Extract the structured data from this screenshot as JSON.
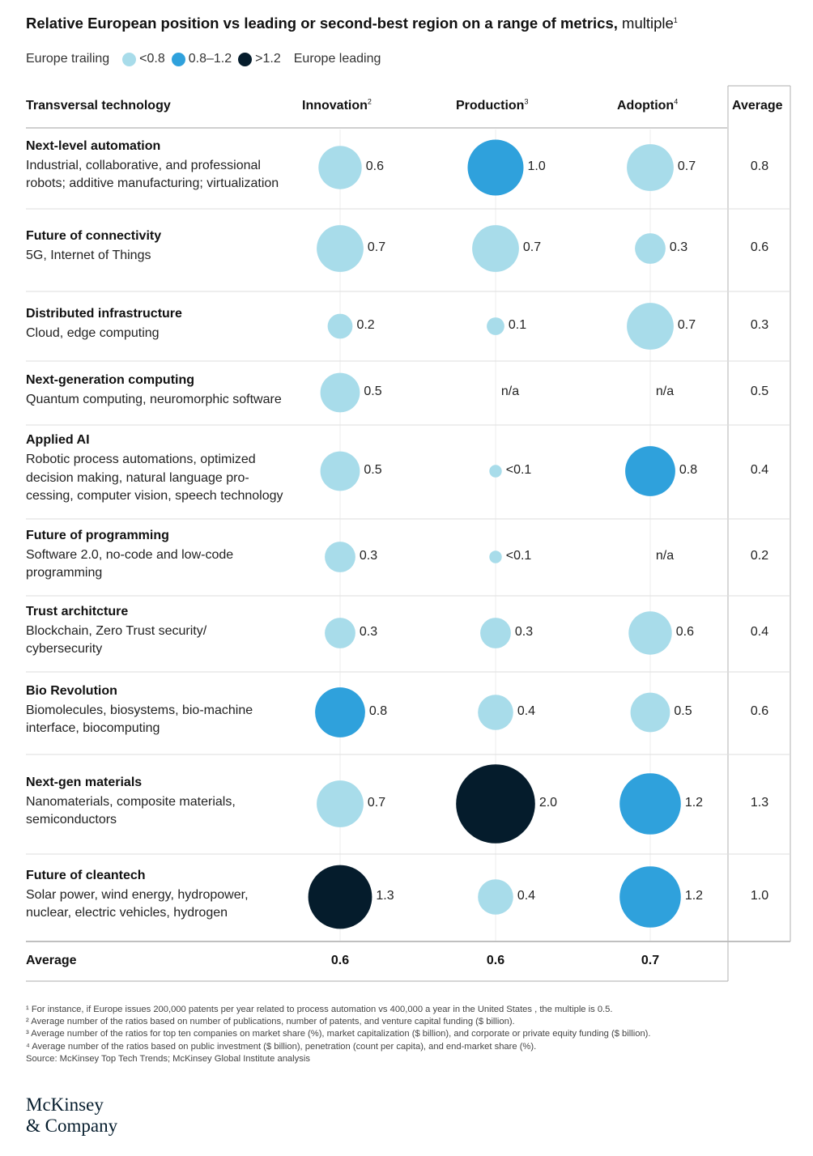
{
  "title": "Relative European position vs leading or second-best region on a range of metrics,",
  "title_unit": "multiple",
  "title_note": "1",
  "legend": {
    "start_label": "Europe trailing",
    "end_label": "Europe leading",
    "items": [
      {
        "label": "<0.8",
        "color": "#a8dcea"
      },
      {
        "label": "0.8–1.2",
        "color": "#2fa1dc"
      },
      {
        "label": ">1.2",
        "color": "#051c2c"
      }
    ]
  },
  "headers": {
    "technology": "Transversal technology",
    "innovation": "Innovation",
    "innovation_note": "2",
    "production": "Production",
    "production_note": "3",
    "adoption": "Adoption",
    "adoption_note": "4",
    "average": "Average"
  },
  "chart_data": {
    "type": "bubble-table",
    "columns": [
      "Innovation",
      "Production",
      "Adoption"
    ],
    "rows": [
      {
        "title": "Next-level automation",
        "subtitle": "Industrial, collaborative, and professional\nrobots; additive manufacturing; virtualization",
        "values": [
          0.6,
          1.0,
          0.7
        ],
        "labels": [
          "0.6",
          "1.0",
          "0.7"
        ],
        "category": [
          "<0.8",
          "0.8–1.2",
          "<0.8"
        ],
        "average": "0.8"
      },
      {
        "title": "Future of connectivity",
        "subtitle": "5G, Internet of Things",
        "values": [
          0.7,
          0.7,
          0.3
        ],
        "labels": [
          "0.7",
          "0.7",
          "0.3"
        ],
        "category": [
          "<0.8",
          "<0.8",
          "<0.8"
        ],
        "average": "0.6"
      },
      {
        "title": "Distributed infrastructure",
        "subtitle": "Cloud, edge computing",
        "values": [
          0.2,
          0.1,
          0.7
        ],
        "labels": [
          "0.2",
          "0.1",
          "0.7"
        ],
        "category": [
          "<0.8",
          "<0.8",
          "<0.8"
        ],
        "average": "0.3"
      },
      {
        "title": "Next-generation computing",
        "subtitle": "Quantum computing, neuromorphic software",
        "values": [
          0.5,
          null,
          null
        ],
        "labels": [
          "0.5",
          "n/a",
          "n/a"
        ],
        "category": [
          "<0.8",
          null,
          null
        ],
        "average": "0.5"
      },
      {
        "title": "Applied AI",
        "subtitle": "Robotic process automations, optimized\ndecision making, natural language pro-\ncessing, computer vision, speech technology",
        "values": [
          0.5,
          0.05,
          0.8
        ],
        "labels": [
          "0.5",
          "<0.1",
          "0.8"
        ],
        "category": [
          "<0.8",
          "<0.8",
          "0.8–1.2"
        ],
        "average": "0.4"
      },
      {
        "title": "Future of programming",
        "subtitle": "Software 2.0, no-code and low-code\nprogramming",
        "values": [
          0.3,
          0.05,
          null
        ],
        "labels": [
          "0.3",
          "<0.1",
          "n/a"
        ],
        "category": [
          "<0.8",
          "<0.8",
          null
        ],
        "average": "0.2"
      },
      {
        "title": "Trust architcture",
        "subtitle": "Blockchain, Zero Trust security/\ncybersecurity",
        "values": [
          0.3,
          0.3,
          0.6
        ],
        "labels": [
          "0.3",
          "0.3",
          "0.6"
        ],
        "category": [
          "<0.8",
          "<0.8",
          "<0.8"
        ],
        "average": "0.4"
      },
      {
        "title": "Bio Revolution",
        "subtitle": "Biomolecules, biosystems, bio-machine\ninterface, biocomputing",
        "values": [
          0.8,
          0.4,
          0.5
        ],
        "labels": [
          "0.8",
          "0.4",
          "0.5"
        ],
        "category": [
          "0.8–1.2",
          "<0.8",
          "<0.8"
        ],
        "average": "0.6"
      },
      {
        "title": "Next-gen materials",
        "subtitle": "Nanomaterials, composite materials,\nsemiconductors",
        "values": [
          0.7,
          2.0,
          1.2
        ],
        "labels": [
          "0.7",
          "2.0",
          "1.2"
        ],
        "category": [
          "<0.8",
          ">1.2",
          "0.8–1.2"
        ],
        "average": "1.3"
      },
      {
        "title": "Future of cleantech",
        "subtitle": "Solar power, wind energy, hydropower,\nnuclear, electric vehicles, hydrogen",
        "values": [
          1.3,
          0.4,
          1.2
        ],
        "labels": [
          "1.3",
          "0.4",
          "1.2"
        ],
        "category": [
          ">1.2",
          "<0.8",
          "0.8–1.2"
        ],
        "average": "1.0"
      }
    ],
    "column_averages_label": "Average",
    "column_averages": [
      "0.6",
      "0.6",
      "0.7"
    ],
    "colors": {
      "<0.8": "#a8dcea",
      "0.8–1.2": "#2fa1dc",
      ">1.2": "#051c2c"
    }
  },
  "footnotes": [
    "¹ For instance, if Europe issues 200,000 patents per year related to process automation vs 400,000 a year in the United States , the multiple is 0.5.",
    "² Average number of the ratios based on number of publications, number of patents, and venture capital funding ($ billion).",
    "³ Average number of the ratios for top ten companies on market share (%), market capitalization ($ billion), and corporate or private equity funding ($ billion).",
    "⁴ Average number of the ratios based on public investment ($ billion), penetration (count per capita), and end-market share (%).",
    "Source: McKinsey Top Tech Trends; McKinsey Global Institute analysis"
  ],
  "logo": {
    "line1": "McKinsey",
    "line2": "& Company"
  }
}
